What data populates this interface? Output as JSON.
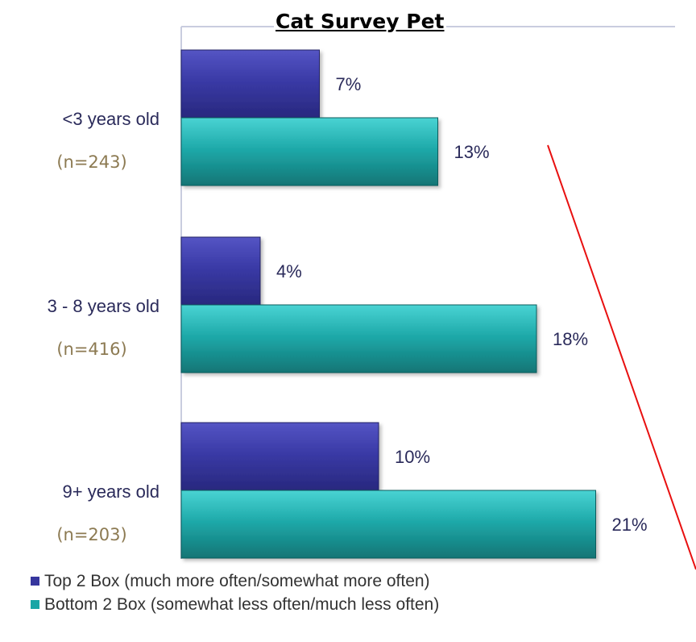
{
  "chart_data": {
    "type": "bar",
    "orientation": "horizontal",
    "title": "Cat Survey Pet",
    "xlabel": "",
    "ylabel": "",
    "xlim": [
      0,
      22
    ],
    "grid": false,
    "legend_position": "bottom-left",
    "categories": [
      "<3 years old",
      "3 - 8 years old",
      "9+ years old"
    ],
    "category_counts": [
      "(n=243)",
      "(n=416)",
      "(n=203)"
    ],
    "series": [
      {
        "name": "Top 2 Box (much more often/somewhat more often)",
        "values": [
          7,
          4,
          10
        ],
        "labels": [
          "7%",
          "4%",
          "10%"
        ],
        "color": "#36369e"
      },
      {
        "name": "Bottom 2 Box (somewhat less often/much less often)",
        "values": [
          13,
          18,
          21
        ],
        "labels": [
          "13%",
          "18%",
          "21%"
        ],
        "color": "#1aa6a6"
      }
    ],
    "annotation_color": "#e81010"
  }
}
